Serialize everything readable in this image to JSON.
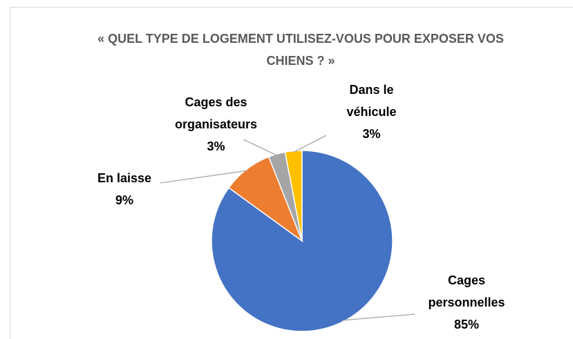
{
  "chart_data": {
    "type": "pie",
    "title": "« QUEL TYPE DE LOGEMENT UTILISEZ-VOUS POUR EXPOSER VOS CHIENS ? »",
    "categories": [
      "Cages personnelles",
      "En laisse",
      "Cages des organisateurs",
      "Dans le véhicule"
    ],
    "values": [
      85,
      9,
      3,
      3
    ],
    "value_labels": [
      "85%",
      "9%",
      "3%",
      "3%"
    ],
    "colors": [
      "#4472c4",
      "#ed7d31",
      "#a5a5a5",
      "#ffc000"
    ]
  }
}
